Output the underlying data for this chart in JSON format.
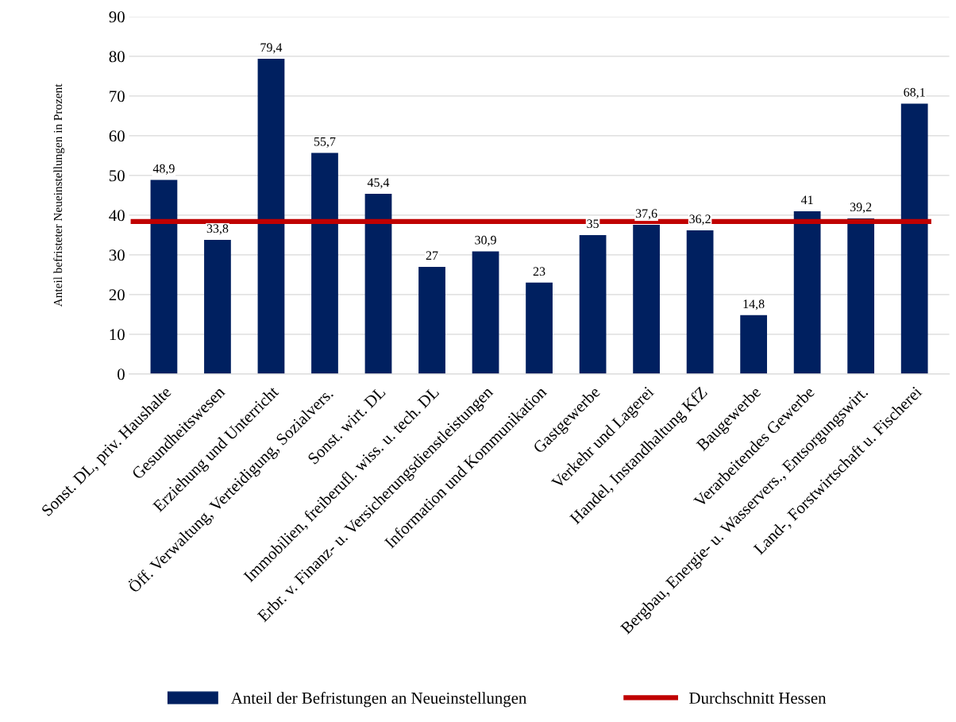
{
  "chart_data": {
    "type": "bar",
    "ylabel": "Anteil befristeter Neueinstellungen in Prozent",
    "categories": [
      "Sonst. DL, priv. Haushalte",
      "Gesundheitswesen",
      "Erziehung und Unterricht",
      "Öff. Verwaltung, Verteidigung, Sozialvers.",
      "Sonst. wirt. DL",
      "Immobilien, freiberufl. wiss. u. tech. DL",
      "Erbr. v. Finanz- u. Versicherungsdienstleistungen",
      "Information und Kommunikation",
      "Gastgewerbe",
      "Verkehr und Lagerei",
      "Handel, Instandhaltung KfZ",
      "Baugewerbe",
      "Verarbeitendes Gewerbe",
      "Bergbau, Energie- u. Wasservers., Entsorgungswirt.",
      "Land-, Forstwirtschaft u. Fischerei"
    ],
    "series": [
      {
        "name": "Anteil der Befristungen an Neueinstellungen",
        "color": "#002060",
        "values": [
          48.9,
          33.8,
          79.4,
          55.7,
          45.4,
          27,
          30.9,
          23,
          35,
          37.6,
          36.2,
          14.8,
          41,
          39.2,
          68.1
        ]
      }
    ],
    "value_labels": [
      "48,9",
      "33,8",
      "79,4",
      "55,7",
      "45,4",
      "27",
      "30,9",
      "23",
      "35",
      "37,6",
      "36,2",
      "14,8",
      "41",
      "39,2",
      "68,1"
    ],
    "ref_lines": [
      {
        "axis": "y",
        "value": 38.4,
        "label": "Durchschnitt Hessen",
        "color": "#c00000",
        "line_style": "solid"
      }
    ],
    "ylim": [
      0,
      90
    ],
    "yticks": [
      0,
      10,
      20,
      30,
      40,
      50,
      60,
      70,
      80,
      90
    ],
    "grid": "y",
    "legend": "bottom"
  }
}
